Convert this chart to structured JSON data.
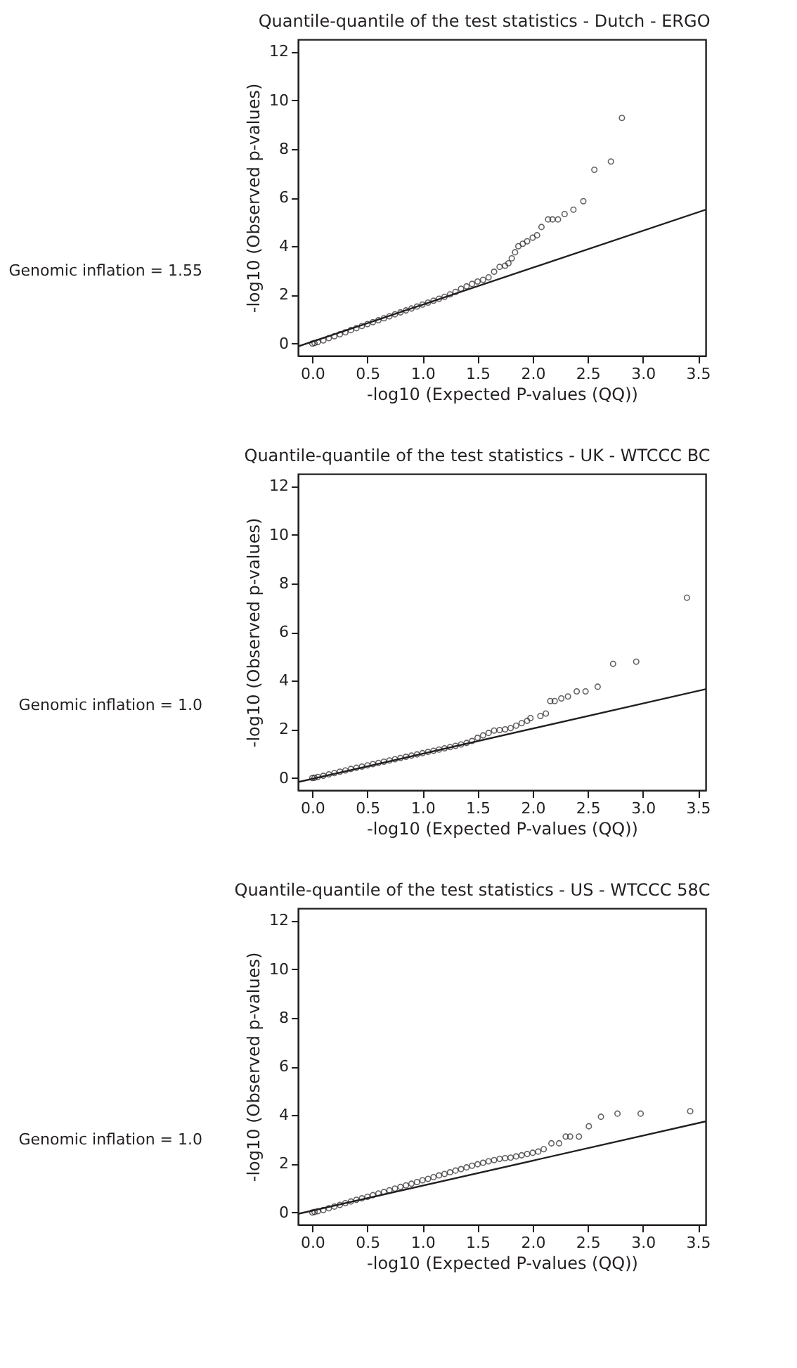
{
  "chart_data": [
    {
      "type": "scatter",
      "title": "Quantile-quantile of the test statistics - Dutch - ERGO",
      "xlabel": "-log10 (Expected P-values (QQ))",
      "ylabel": "-log10 (Observed p-values)",
      "annotations": [
        "Genomic inflation = 1.55"
      ],
      "xlim": [
        -0.13,
        3.57
      ],
      "ylim": [
        -0.5,
        12.5
      ],
      "xticks": [
        {
          "value": 0,
          "label": "0.0"
        },
        0.5,
        {
          "value": 1,
          "label": "1.0"
        },
        1.5,
        {
          "value": 2,
          "label": "2.0"
        },
        2.5,
        {
          "value": 3,
          "label": "3.0"
        },
        3.5
      ],
      "yticks": [
        0,
        2,
        4,
        6,
        8,
        10,
        12
      ],
      "grid": false,
      "series": [
        {
          "type": "scatter",
          "marker": "circle",
          "color": "#231f20",
          "x": [
            0,
            0.02,
            0.05,
            0.1,
            0.15,
            0.2,
            0.25,
            0.3,
            0.35,
            0.4,
            0.45,
            0.5,
            0.55,
            0.6,
            0.65,
            0.7,
            0.75,
            0.8,
            0.85,
            0.9,
            0.95,
            1.0,
            1.05,
            1.1,
            1.15,
            1.2,
            1.25,
            1.3,
            1.35,
            1.4,
            1.45,
            1.5,
            1.55,
            1.6,
            1.65,
            1.7,
            1.75,
            1.78,
            1.81,
            1.84,
            1.87,
            1.91,
            1.95,
            2.0,
            2.04,
            2.08,
            2.14,
            2.18,
            2.23,
            2.29,
            2.37,
            2.46,
            2.56,
            2.71,
            2.81
          ],
          "values": [
            0,
            0.02,
            0.06,
            0.13,
            0.22,
            0.3,
            0.38,
            0.46,
            0.55,
            0.63,
            0.72,
            0.8,
            0.88,
            0.96,
            1.04,
            1.12,
            1.2,
            1.28,
            1.36,
            1.44,
            1.52,
            1.6,
            1.68,
            1.76,
            1.84,
            1.92,
            2.02,
            2.12,
            2.25,
            2.35,
            2.45,
            2.55,
            2.62,
            2.72,
            2.95,
            3.15,
            3.2,
            3.3,
            3.5,
            3.75,
            4.0,
            4.1,
            4.2,
            4.35,
            4.45,
            4.79,
            5.1,
            5.1,
            5.1,
            5.32,
            5.5,
            5.85,
            7.14,
            7.48,
            9.27
          ]
        },
        {
          "type": "line",
          "color": "#231f20",
          "x": [
            -0.13,
            3.57
          ],
          "values": [
            -0.12,
            5.5
          ]
        }
      ]
    },
    {
      "type": "scatter",
      "title": "Quantile-quantile of the test statistics - UK - WTCCC BC",
      "xlabel": "-log10 (Expected P-values (QQ))",
      "ylabel": "-log10 (Observed p-values)",
      "annotations": [
        "Genomic inflation = 1.0"
      ],
      "xlim": [
        -0.13,
        3.57
      ],
      "ylim": [
        -0.5,
        12.5
      ],
      "xticks": [
        {
          "value": 0,
          "label": "0.0"
        },
        0.5,
        {
          "value": 1,
          "label": "1.0"
        },
        1.5,
        {
          "value": 2,
          "label": "2.0"
        },
        2.5,
        {
          "value": 3,
          "label": "3.0"
        },
        3.5
      ],
      "yticks": [
        0,
        2,
        4,
        6,
        8,
        10,
        12
      ],
      "grid": false,
      "series": [
        {
          "type": "scatter",
          "marker": "circle",
          "color": "#231f20",
          "x": [
            0,
            0.02,
            0.05,
            0.1,
            0.15,
            0.2,
            0.25,
            0.3,
            0.35,
            0.4,
            0.45,
            0.5,
            0.55,
            0.6,
            0.65,
            0.7,
            0.75,
            0.8,
            0.85,
            0.9,
            0.95,
            1.0,
            1.05,
            1.1,
            1.15,
            1.2,
            1.25,
            1.3,
            1.35,
            1.4,
            1.45,
            1.5,
            1.55,
            1.6,
            1.65,
            1.7,
            1.75,
            1.8,
            1.85,
            1.9,
            1.95,
            1.98,
            2.07,
            2.12,
            2.16,
            2.2,
            2.26,
            2.32,
            2.4,
            2.48,
            2.59,
            2.73,
            2.94,
            3.4
          ],
          "values": [
            0,
            0.01,
            0.04,
            0.09,
            0.15,
            0.2,
            0.26,
            0.31,
            0.37,
            0.42,
            0.47,
            0.52,
            0.57,
            0.62,
            0.67,
            0.72,
            0.77,
            0.82,
            0.87,
            0.92,
            0.97,
            1.02,
            1.07,
            1.12,
            1.17,
            1.22,
            1.27,
            1.32,
            1.38,
            1.44,
            1.52,
            1.65,
            1.75,
            1.85,
            1.95,
            1.97,
            2.0,
            2.05,
            2.15,
            2.25,
            2.35,
            2.46,
            2.55,
            2.65,
            3.16,
            3.16,
            3.27,
            3.35,
            3.56,
            3.56,
            3.75,
            4.69,
            4.78,
            7.41
          ]
        },
        {
          "type": "line",
          "color": "#231f20",
          "x": [
            -0.13,
            3.57
          ],
          "values": [
            -0.17,
            3.65
          ]
        }
      ]
    },
    {
      "type": "scatter",
      "title": "Quantile-quantile of the test statistics - US - WTCCC 58C",
      "xlabel": "-log10 (Expected P-values (QQ))",
      "ylabel": "-log10 (Observed p-values)",
      "annotations": [
        "Genomic inflation = 1.0"
      ],
      "xlim": [
        -0.13,
        3.57
      ],
      "ylim": [
        -0.5,
        12.5
      ],
      "xticks": [
        {
          "value": 0,
          "label": "0.0"
        },
        0.5,
        {
          "value": 1,
          "label": "1.0"
        },
        1.5,
        {
          "value": 2,
          "label": "2.0"
        },
        2.5,
        {
          "value": 3,
          "label": "3.0"
        },
        3.5
      ],
      "yticks": [
        0,
        2,
        4,
        6,
        8,
        10,
        12
      ],
      "grid": false,
      "series": [
        {
          "type": "scatter",
          "marker": "circle",
          "color": "#231f20",
          "x": [
            0,
            0.02,
            0.05,
            0.1,
            0.15,
            0.2,
            0.25,
            0.3,
            0.35,
            0.4,
            0.45,
            0.5,
            0.55,
            0.6,
            0.65,
            0.7,
            0.75,
            0.8,
            0.85,
            0.9,
            0.95,
            1.0,
            1.05,
            1.1,
            1.15,
            1.2,
            1.25,
            1.3,
            1.35,
            1.4,
            1.45,
            1.5,
            1.55,
            1.6,
            1.65,
            1.7,
            1.75,
            1.8,
            1.85,
            1.9,
            1.95,
            2.0,
            2.05,
            2.1,
            2.17,
            2.24,
            2.3,
            2.34,
            2.42,
            2.51,
            2.62,
            2.77,
            2.98,
            3.43
          ],
          "values": [
            0,
            0.02,
            0.05,
            0.1,
            0.17,
            0.24,
            0.31,
            0.38,
            0.45,
            0.52,
            0.58,
            0.64,
            0.71,
            0.78,
            0.84,
            0.91,
            0.98,
            1.05,
            1.11,
            1.18,
            1.25,
            1.32,
            1.38,
            1.45,
            1.52,
            1.58,
            1.65,
            1.72,
            1.78,
            1.85,
            1.92,
            1.98,
            2.04,
            2.1,
            2.15,
            2.2,
            2.23,
            2.25,
            2.3,
            2.35,
            2.4,
            2.45,
            2.5,
            2.6,
            2.84,
            2.84,
            3.12,
            3.12,
            3.12,
            3.54,
            3.93,
            4.06,
            4.06,
            4.16
          ]
        },
        {
          "type": "line",
          "color": "#231f20",
          "x": [
            -0.13,
            3.57
          ],
          "values": [
            -0.06,
            3.74
          ]
        }
      ]
    }
  ]
}
